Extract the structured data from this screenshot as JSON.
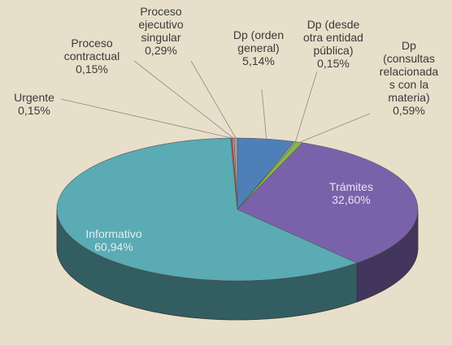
{
  "chart_data": {
    "type": "pie",
    "categories": [
      "Dp (orden\ngeneral)",
      "Dp (desde\notra entidad\npública)",
      "Dp\n(consultas\nrelacionada\ns con la\nmateria)",
      "Trámites",
      "Informativo",
      "Urgente",
      "Proceso\ncontractual",
      "Proceso\nejecutivo\nsingular"
    ],
    "values": [
      5.14,
      0.15,
      0.59,
      32.6,
      60.94,
      0.15,
      0.15,
      0.29
    ],
    "value_labels": [
      "5,14%",
      "0,15%",
      "0,59%",
      "32,60%",
      "60,94%",
      "0,15%",
      "0,15%",
      "0,29%"
    ],
    "colors": [
      "#4f7fb8",
      "#d6df7a",
      "#86b84e",
      "#7a62aa",
      "#5aabb3",
      "#c94a4a",
      "#d89aa0",
      "#a0a0a0"
    ]
  }
}
